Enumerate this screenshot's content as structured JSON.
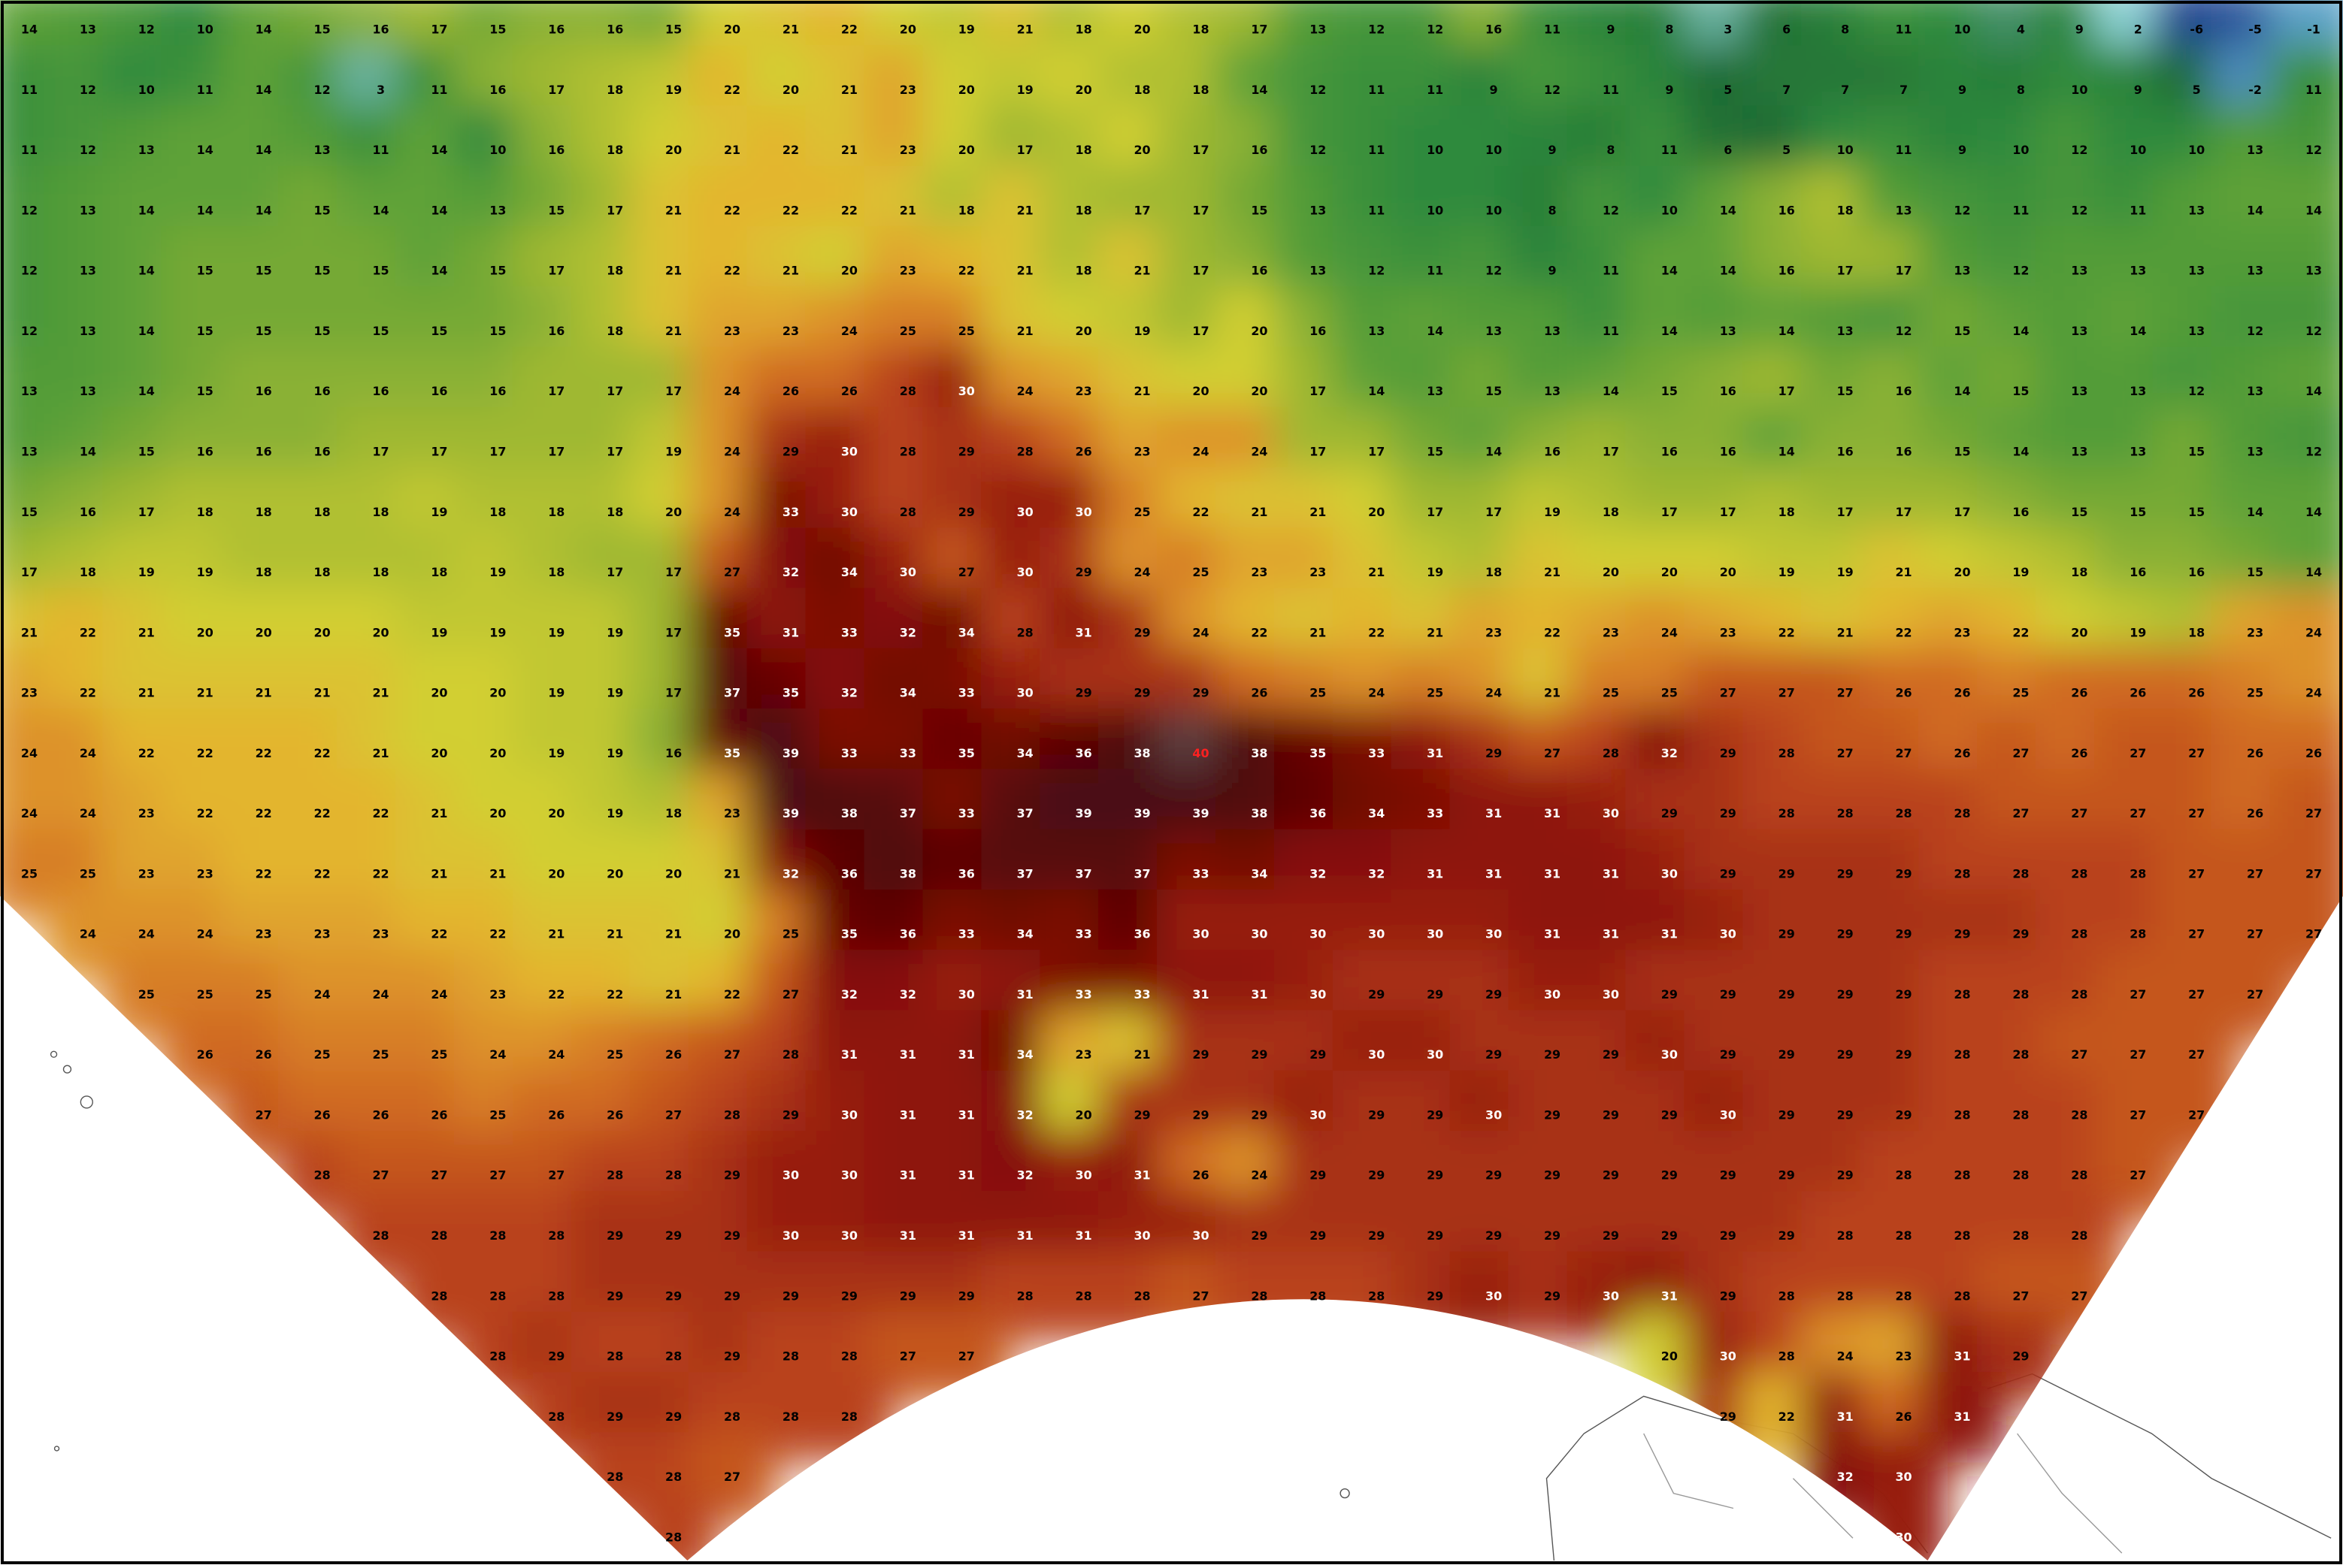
{
  "map_data": {
    "type": "grid",
    "rows": [
      [
        14,
        13,
        12,
        10,
        14,
        15,
        16,
        17,
        15,
        16,
        16,
        15,
        20,
        21,
        22,
        20,
        19,
        21,
        18,
        20,
        18,
        17,
        13,
        12,
        12,
        16,
        11,
        9,
        8,
        3,
        6,
        8,
        11,
        10,
        4,
        9,
        2,
        -6,
        -5,
        -1
      ],
      [
        11,
        12,
        10,
        11,
        14,
        12,
        3,
        11,
        16,
        17,
        18,
        19,
        22,
        20,
        21,
        23,
        20,
        19,
        20,
        18,
        18,
        14,
        12,
        11,
        11,
        9,
        12,
        11,
        9,
        5,
        7,
        7,
        7,
        9,
        8,
        10,
        9,
        5,
        -2,
        11
      ],
      [
        11,
        12,
        13,
        14,
        14,
        13,
        11,
        14,
        10,
        16,
        18,
        20,
        21,
        22,
        21,
        23,
        20,
        17,
        18,
        20,
        17,
        16,
        12,
        11,
        10,
        10,
        9,
        8,
        11,
        6,
        5,
        10,
        11,
        9,
        10,
        12,
        10,
        10,
        13,
        12
      ],
      [
        12,
        13,
        14,
        14,
        14,
        15,
        14,
        14,
        13,
        15,
        17,
        21,
        22,
        22,
        22,
        21,
        18,
        21,
        18,
        17,
        17,
        15,
        13,
        11,
        10,
        10,
        8,
        12,
        10,
        14,
        16,
        18,
        13,
        12,
        11,
        12,
        11,
        13,
        14,
        14
      ],
      [
        12,
        13,
        14,
        15,
        15,
        15,
        15,
        14,
        15,
        17,
        18,
        21,
        22,
        21,
        20,
        23,
        22,
        21,
        18,
        21,
        17,
        16,
        13,
        12,
        11,
        12,
        9,
        11,
        14,
        14,
        16,
        17,
        17,
        13,
        12,
        13,
        13,
        13,
        13,
        13
      ],
      [
        12,
        13,
        14,
        15,
        15,
        15,
        15,
        15,
        15,
        16,
        18,
        21,
        23,
        23,
        24,
        25,
        25,
        21,
        20,
        19,
        17,
        20,
        16,
        13,
        14,
        13,
        13,
        11,
        14,
        13,
        14,
        13,
        12,
        15,
        14,
        13,
        14,
        13,
        12,
        12
      ],
      [
        13,
        13,
        14,
        15,
        16,
        16,
        16,
        16,
        16,
        17,
        17,
        17,
        24,
        26,
        26,
        28,
        30,
        24,
        23,
        21,
        20,
        20,
        17,
        14,
        13,
        15,
        13,
        14,
        15,
        16,
        17,
        15,
        16,
        14,
        15,
        13,
        13,
        12,
        13,
        14
      ],
      [
        13,
        14,
        15,
        16,
        16,
        16,
        17,
        17,
        17,
        17,
        17,
        19,
        24,
        29,
        30,
        28,
        29,
        28,
        26,
        23,
        24,
        24,
        17,
        17,
        15,
        14,
        16,
        17,
        16,
        16,
        14,
        16,
        16,
        15,
        14,
        13,
        13,
        15,
        13,
        12
      ],
      [
        15,
        16,
        17,
        18,
        18,
        18,
        18,
        19,
        18,
        18,
        18,
        20,
        24,
        33,
        30,
        28,
        29,
        30,
        30,
        25,
        22,
        21,
        21,
        20,
        17,
        17,
        19,
        18,
        17,
        17,
        18,
        17,
        17,
        17,
        16,
        15,
        15,
        15,
        14,
        14
      ],
      [
        17,
        18,
        19,
        19,
        18,
        18,
        18,
        18,
        19,
        18,
        17,
        17,
        27,
        32,
        34,
        30,
        27,
        30,
        29,
        24,
        25,
        23,
        23,
        21,
        19,
        18,
        21,
        20,
        20,
        20,
        19,
        19,
        21,
        20,
        19,
        18,
        16,
        16,
        15,
        14
      ],
      [
        21,
        22,
        21,
        20,
        20,
        20,
        20,
        19,
        19,
        19,
        19,
        17,
        35,
        31,
        33,
        32,
        34,
        28,
        31,
        29,
        24,
        22,
        21,
        22,
        21,
        23,
        22,
        23,
        24,
        23,
        22,
        21,
        22,
        23,
        22,
        20,
        19,
        18,
        23,
        24
      ],
      [
        23,
        22,
        21,
        21,
        21,
        21,
        21,
        20,
        20,
        19,
        19,
        17,
        37,
        35,
        32,
        34,
        33,
        30,
        29,
        29,
        29,
        26,
        25,
        24,
        25,
        24,
        21,
        25,
        25,
        27,
        27,
        27,
        26,
        26,
        25,
        26,
        26,
        26,
        25,
        24
      ],
      [
        24,
        24,
        22,
        22,
        22,
        22,
        21,
        20,
        20,
        19,
        19,
        16,
        35,
        39,
        33,
        33,
        35,
        34,
        36,
        38,
        40,
        38,
        35,
        33,
        31,
        29,
        27,
        28,
        32,
        29,
        28,
        27,
        27,
        26,
        27,
        26,
        27,
        27,
        26,
        26
      ],
      [
        24,
        24,
        23,
        22,
        22,
        22,
        22,
        21,
        20,
        20,
        19,
        18,
        23,
        39,
        38,
        37,
        33,
        37,
        39,
        39,
        39,
        38,
        36,
        34,
        33,
        31,
        31,
        30,
        29,
        29,
        28,
        28,
        28,
        28,
        27,
        27,
        27,
        27,
        26,
        27
      ],
      [
        25,
        25,
        23,
        23,
        22,
        22,
        22,
        21,
        21,
        20,
        20,
        20,
        21,
        32,
        36,
        38,
        36,
        37,
        37,
        37,
        33,
        34,
        32,
        32,
        31,
        31,
        31,
        31,
        30,
        29,
        29,
        29,
        29,
        28,
        28,
        28,
        28,
        27,
        27,
        27
      ],
      [
        null,
        24,
        24,
        24,
        23,
        23,
        23,
        22,
        22,
        21,
        21,
        21,
        20,
        25,
        35,
        36,
        33,
        34,
        33,
        36,
        30,
        30,
        30,
        30,
        30,
        30,
        31,
        31,
        31,
        30,
        29,
        29,
        29,
        29,
        29,
        28,
        28,
        27,
        27,
        27
      ],
      [
        null,
        null,
        25,
        25,
        25,
        24,
        24,
        24,
        23,
        22,
        22,
        21,
        22,
        27,
        32,
        32,
        30,
        31,
        33,
        33,
        31,
        31,
        30,
        29,
        29,
        29,
        30,
        30,
        29,
        29,
        29,
        29,
        29,
        28,
        28,
        28,
        27,
        27,
        27,
        null
      ],
      [
        null,
        null,
        null,
        26,
        26,
        25,
        25,
        25,
        24,
        24,
        25,
        26,
        27,
        28,
        31,
        31,
        31,
        34,
        23,
        21,
        29,
        29,
        29,
        30,
        30,
        29,
        29,
        29,
        30,
        29,
        29,
        29,
        29,
        28,
        28,
        27,
        27,
        27,
        null,
        null
      ],
      [
        null,
        null,
        null,
        null,
        27,
        26,
        26,
        26,
        25,
        26,
        26,
        27,
        28,
        29,
        30,
        31,
        31,
        32,
        20,
        29,
        29,
        29,
        30,
        29,
        29,
        30,
        29,
        29,
        29,
        30,
        29,
        29,
        29,
        28,
        28,
        28,
        27,
        27,
        null,
        null
      ],
      [
        null,
        null,
        null,
        null,
        null,
        28,
        27,
        27,
        27,
        27,
        28,
        28,
        29,
        30,
        30,
        31,
        31,
        32,
        30,
        31,
        26,
        24,
        29,
        29,
        29,
        29,
        29,
        29,
        29,
        29,
        29,
        29,
        28,
        28,
        28,
        28,
        27,
        null,
        null,
        null
      ],
      [
        null,
        null,
        null,
        null,
        null,
        null,
        28,
        28,
        28,
        28,
        29,
        29,
        29,
        30,
        30,
        31,
        31,
        31,
        31,
        30,
        30,
        29,
        29,
        29,
        29,
        29,
        29,
        29,
        29,
        29,
        29,
        28,
        28,
        28,
        28,
        28,
        null,
        null,
        null,
        null
      ],
      [
        null,
        null,
        null,
        null,
        null,
        null,
        null,
        28,
        28,
        28,
        29,
        29,
        29,
        29,
        29,
        29,
        29,
        28,
        28,
        28,
        27,
        28,
        28,
        28,
        29,
        30,
        29,
        30,
        31,
        29,
        28,
        28,
        28,
        28,
        27,
        27,
        null,
        null,
        null,
        null
      ],
      [
        null,
        null,
        null,
        null,
        null,
        null,
        null,
        null,
        28,
        29,
        28,
        28,
        29,
        28,
        28,
        27,
        27,
        null,
        null,
        null,
        null,
        null,
        null,
        null,
        null,
        null,
        null,
        null,
        20,
        30,
        28,
        24,
        23,
        31,
        29,
        null,
        null,
        null,
        null,
        null
      ],
      [
        null,
        null,
        null,
        null,
        null,
        null,
        null,
        null,
        null,
        28,
        29,
        29,
        28,
        28,
        28,
        null,
        null,
        null,
        null,
        null,
        null,
        null,
        null,
        null,
        null,
        null,
        null,
        null,
        null,
        29,
        22,
        31,
        26,
        31,
        null,
        null,
        null,
        null,
        null,
        null
      ],
      [
        null,
        null,
        null,
        null,
        null,
        null,
        null,
        null,
        null,
        null,
        28,
        28,
        27,
        null,
        null,
        null,
        null,
        null,
        null,
        null,
        null,
        null,
        null,
        null,
        null,
        null,
        null,
        null,
        null,
        null,
        null,
        32,
        30,
        null,
        null,
        null,
        null,
        null,
        null,
        null
      ],
      [
        null,
        null,
        null,
        null,
        null,
        null,
        null,
        null,
        null,
        null,
        null,
        28,
        null,
        null,
        null,
        null,
        null,
        null,
        null,
        null,
        null,
        null,
        null,
        null,
        null,
        null,
        null,
        null,
        null,
        null,
        null,
        null,
        30,
        null,
        null,
        null,
        null,
        null,
        null,
        null
      ]
    ]
  }
}
